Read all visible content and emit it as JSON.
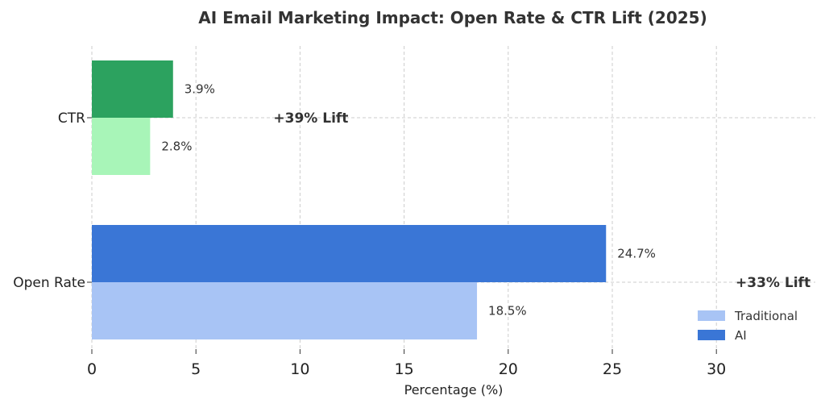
{
  "chart_data": {
    "type": "bar",
    "orientation": "horizontal",
    "title": "AI Email Marketing Impact: Open Rate & CTR Lift (2025)",
    "xlabel": "Percentage (%)",
    "ylabel": "",
    "xlim": [
      0,
      35
    ],
    "xticks": [
      0,
      5,
      10,
      15,
      20,
      25,
      30
    ],
    "grid": true,
    "legend_position": "bottom-right",
    "categories": [
      "Open Rate",
      "CTR"
    ],
    "series": [
      {
        "name": "Traditional",
        "values": [
          18.5,
          2.8
        ],
        "labels": [
          "18.5%",
          "2.8%"
        ],
        "colors": [
          "#a8c4f5",
          "#a8f5b8"
        ]
      },
      {
        "name": "AI",
        "values": [
          24.7,
          3.9
        ],
        "labels": [
          "24.7%",
          "3.9%"
        ],
        "colors": [
          "#3a76d6",
          "#2ca25f"
        ]
      }
    ],
    "annotations": [
      {
        "category": "Open Rate",
        "text": "+33% Lift",
        "x": 31.0
      },
      {
        "category": "CTR",
        "text": "+39% Lift",
        "x": 8.8
      }
    ],
    "legend": [
      {
        "label": "Traditional",
        "color": "#a8c4f5"
      },
      {
        "label": "AI",
        "color": "#3a76d6"
      }
    ]
  }
}
